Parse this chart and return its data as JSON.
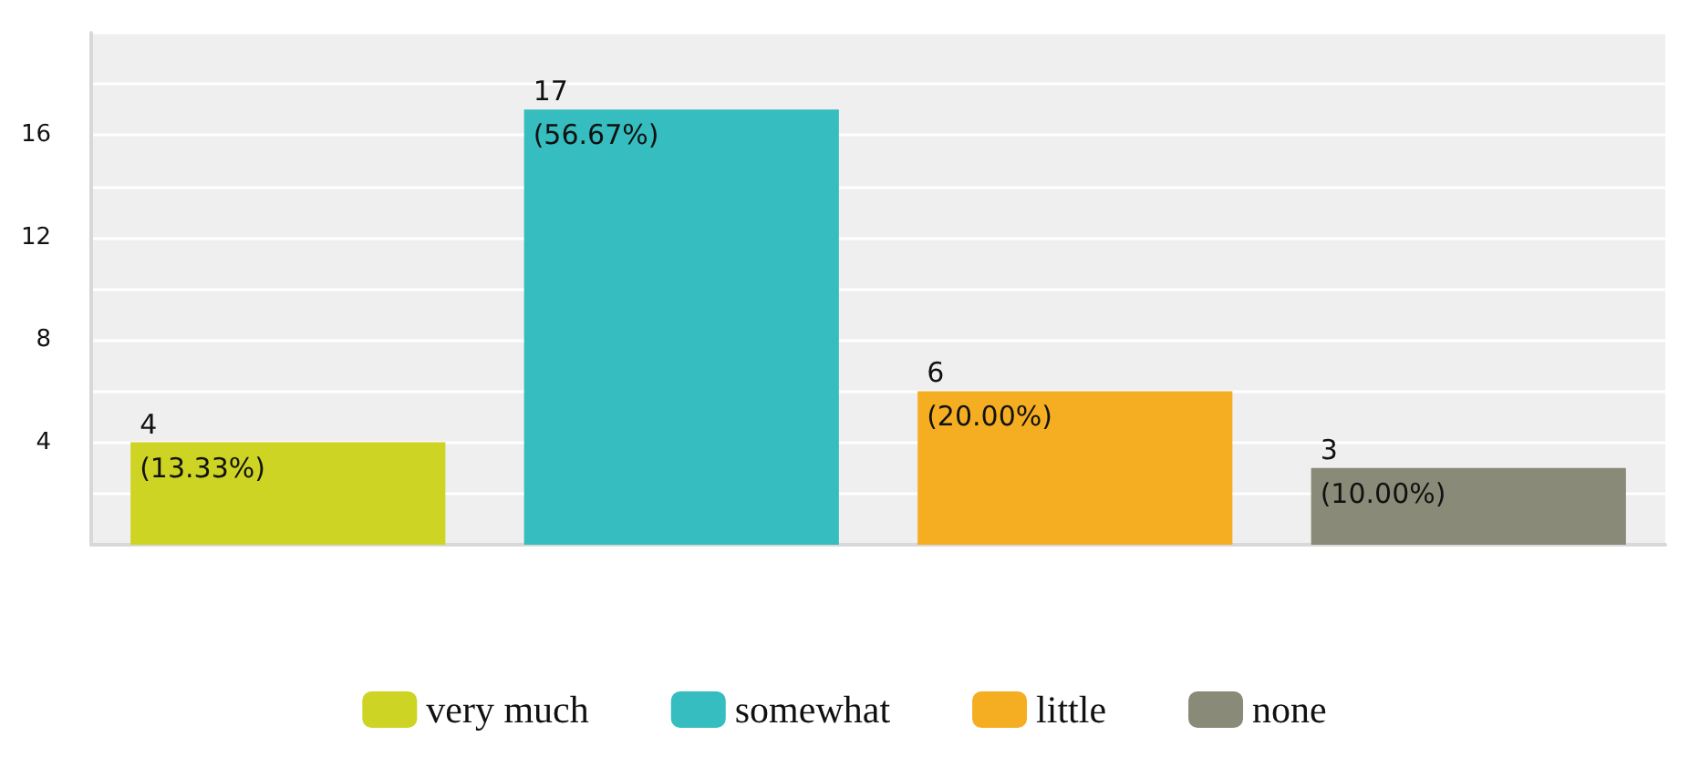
{
  "chart_data": {
    "type": "bar",
    "categories": [
      null,
      null,
      null,
      null
    ],
    "series": [
      {
        "name": "very much",
        "color": "#cdd424",
        "values": [
          4,
          null,
          null,
          null
        ],
        "value_labels": [
          "4\n(13.33%)",
          null,
          null,
          null
        ]
      },
      {
        "name": "somewhat",
        "color": "#35bdbf",
        "values": [
          null,
          17,
          null,
          null
        ],
        "value_labels": [
          null,
          "17\n(56.67%)",
          null,
          null
        ]
      },
      {
        "name": "little",
        "color": "#f5ae22",
        "values": [
          null,
          null,
          6,
          null
        ],
        "value_labels": [
          null,
          null,
          "6\n(20.00%)",
          null
        ]
      },
      {
        "name": "none",
        "color": "#8a8a78",
        "values": [
          null,
          null,
          null,
          3
        ],
        "value_labels": [
          null,
          null,
          null,
          "3\n(10.00%)"
        ]
      }
    ],
    "ylim": [
      0,
      20
    ],
    "yticks": [
      {
        "value": 0,
        "label": null
      },
      {
        "value": 2,
        "label": null
      },
      4,
      {
        "value": 6,
        "label": null
      },
      8,
      {
        "value": 10,
        "label": null
      },
      12,
      {
        "value": 14,
        "label": null
      },
      16,
      {
        "value": 18,
        "label": null
      },
      {
        "value": 20,
        "label": null
      }
    ],
    "grid": "y",
    "legend": "bottom"
  }
}
